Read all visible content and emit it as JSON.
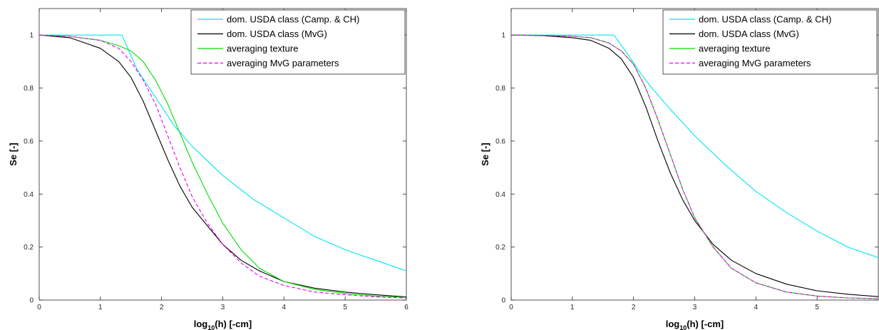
{
  "chart_data": [
    {
      "type": "line",
      "xlabel_base": "log",
      "xlabel_sub": "10",
      "xlabel_rest": "(h) [-cm]",
      "ylabel": "Se [-]",
      "xlim": [
        0,
        6
      ],
      "ylim": [
        0,
        1.1
      ],
      "xticks": [
        "0",
        "1",
        "2",
        "3",
        "4",
        "5",
        "6"
      ],
      "yticks": [
        "0",
        "0.2",
        "0.4",
        "0.6",
        "0.8",
        "1"
      ],
      "grid": false,
      "legend_position": "top-right",
      "series": [
        {
          "name": "dom. USDA class (Camp. & CH)",
          "color": "#00e5ee",
          "style": "solid",
          "x": [
            0,
            1.35,
            1.6,
            1.8,
            2.0,
            2.2,
            2.5,
            3.0,
            3.5,
            4.0,
            4.5,
            5.0,
            5.5,
            6.0
          ],
          "y": [
            1.0,
            1.0,
            0.87,
            0.8,
            0.73,
            0.66,
            0.58,
            0.47,
            0.38,
            0.31,
            0.24,
            0.19,
            0.15,
            0.11
          ]
        },
        {
          "name": "dom. USDA class (MvG)",
          "color": "#000000",
          "style": "solid",
          "x": [
            0,
            0.5,
            1.0,
            1.3,
            1.5,
            1.7,
            1.9,
            2.1,
            2.3,
            2.5,
            2.75,
            3.0,
            3.3,
            3.6,
            4.0,
            4.5,
            5.0,
            5.5,
            6.0
          ],
          "y": [
            1.0,
            0.99,
            0.95,
            0.9,
            0.84,
            0.75,
            0.64,
            0.53,
            0.43,
            0.35,
            0.28,
            0.21,
            0.15,
            0.11,
            0.07,
            0.045,
            0.03,
            0.02,
            0.012
          ]
        },
        {
          "name": "averaging texture",
          "color": "#00dd00",
          "style": "solid",
          "x": [
            0,
            0.5,
            1.0,
            1.3,
            1.5,
            1.7,
            1.9,
            2.1,
            2.3,
            2.5,
            2.75,
            3.0,
            3.3,
            3.6,
            4.0,
            4.5,
            5.0,
            5.5,
            6.0
          ],
          "y": [
            1.0,
            0.995,
            0.98,
            0.96,
            0.94,
            0.9,
            0.83,
            0.74,
            0.63,
            0.52,
            0.4,
            0.29,
            0.19,
            0.12,
            0.07,
            0.04,
            0.025,
            0.015,
            0.01
          ]
        },
        {
          "name": "averaging MvG parameters",
          "color": "#ee00ee",
          "style": "dashed",
          "x": [
            0,
            0.5,
            1.0,
            1.3,
            1.5,
            1.7,
            1.9,
            2.1,
            2.3,
            2.5,
            2.75,
            3.0,
            3.3,
            3.6,
            4.0,
            4.5,
            5.0,
            5.5,
            6.0
          ],
          "y": [
            1.0,
            0.995,
            0.98,
            0.95,
            0.9,
            0.83,
            0.74,
            0.62,
            0.5,
            0.39,
            0.29,
            0.21,
            0.14,
            0.09,
            0.055,
            0.03,
            0.02,
            0.012,
            0.008
          ]
        }
      ]
    },
    {
      "type": "line",
      "xlabel_base": "log",
      "xlabel_sub": "10",
      "xlabel_rest": "(h) [-cm]",
      "ylabel": "Se [-]",
      "xlim": [
        0,
        6
      ],
      "ylim": [
        0,
        1.1
      ],
      "xticks": [
        "0",
        "1",
        "2",
        "3",
        "4",
        "5"
      ],
      "yticks": [
        "0",
        "0.2",
        "0.4",
        "0.6",
        "0.8",
        "1"
      ],
      "grid": false,
      "legend_position": "top-right",
      "series": [
        {
          "name": "dom. USDA class (Camp. & CH)",
          "color": "#00e5ee",
          "style": "solid",
          "x": [
            0,
            1.68,
            1.9,
            2.1,
            2.3,
            2.6,
            3.0,
            3.5,
            4.0,
            4.5,
            5.0,
            5.5,
            6.0
          ],
          "y": [
            1.0,
            1.0,
            0.93,
            0.86,
            0.8,
            0.72,
            0.62,
            0.51,
            0.41,
            0.33,
            0.26,
            0.2,
            0.16
          ]
        },
        {
          "name": "dom. USDA class (MvG)",
          "color": "#000000",
          "style": "solid",
          "x": [
            0,
            0.5,
            1.0,
            1.3,
            1.6,
            1.8,
            2.0,
            2.2,
            2.4,
            2.6,
            2.8,
            3.0,
            3.3,
            3.6,
            4.0,
            4.5,
            5.0,
            5.5,
            6.0
          ],
          "y": [
            1.0,
            0.998,
            0.99,
            0.98,
            0.95,
            0.91,
            0.84,
            0.73,
            0.6,
            0.48,
            0.38,
            0.3,
            0.21,
            0.15,
            0.1,
            0.06,
            0.035,
            0.022,
            0.013
          ]
        },
        {
          "name": "averaging texture",
          "color": "#00dd00",
          "style": "solid",
          "x": [
            0,
            0.5,
            1.0,
            1.3,
            1.6,
            1.8,
            2.0,
            2.2,
            2.4,
            2.6,
            2.8,
            3.0,
            3.3,
            3.6,
            4.0,
            4.5,
            5.0,
            5.5,
            6.0
          ],
          "y": [
            1.0,
            0.999,
            0.995,
            0.99,
            0.97,
            0.94,
            0.89,
            0.8,
            0.68,
            0.55,
            0.42,
            0.31,
            0.2,
            0.12,
            0.065,
            0.03,
            0.015,
            0.008,
            0.005
          ]
        },
        {
          "name": "averaging MvG parameters",
          "color": "#ee00ee",
          "style": "dashed",
          "x": [
            0,
            0.5,
            1.0,
            1.3,
            1.6,
            1.8,
            2.0,
            2.2,
            2.4,
            2.6,
            2.8,
            3.0,
            3.3,
            3.6,
            4.0,
            4.5,
            5.0,
            5.5,
            6.0
          ],
          "y": [
            1.0,
            0.999,
            0.995,
            0.99,
            0.97,
            0.94,
            0.89,
            0.8,
            0.68,
            0.55,
            0.42,
            0.31,
            0.2,
            0.12,
            0.065,
            0.03,
            0.015,
            0.008,
            0.005
          ]
        }
      ]
    }
  ]
}
